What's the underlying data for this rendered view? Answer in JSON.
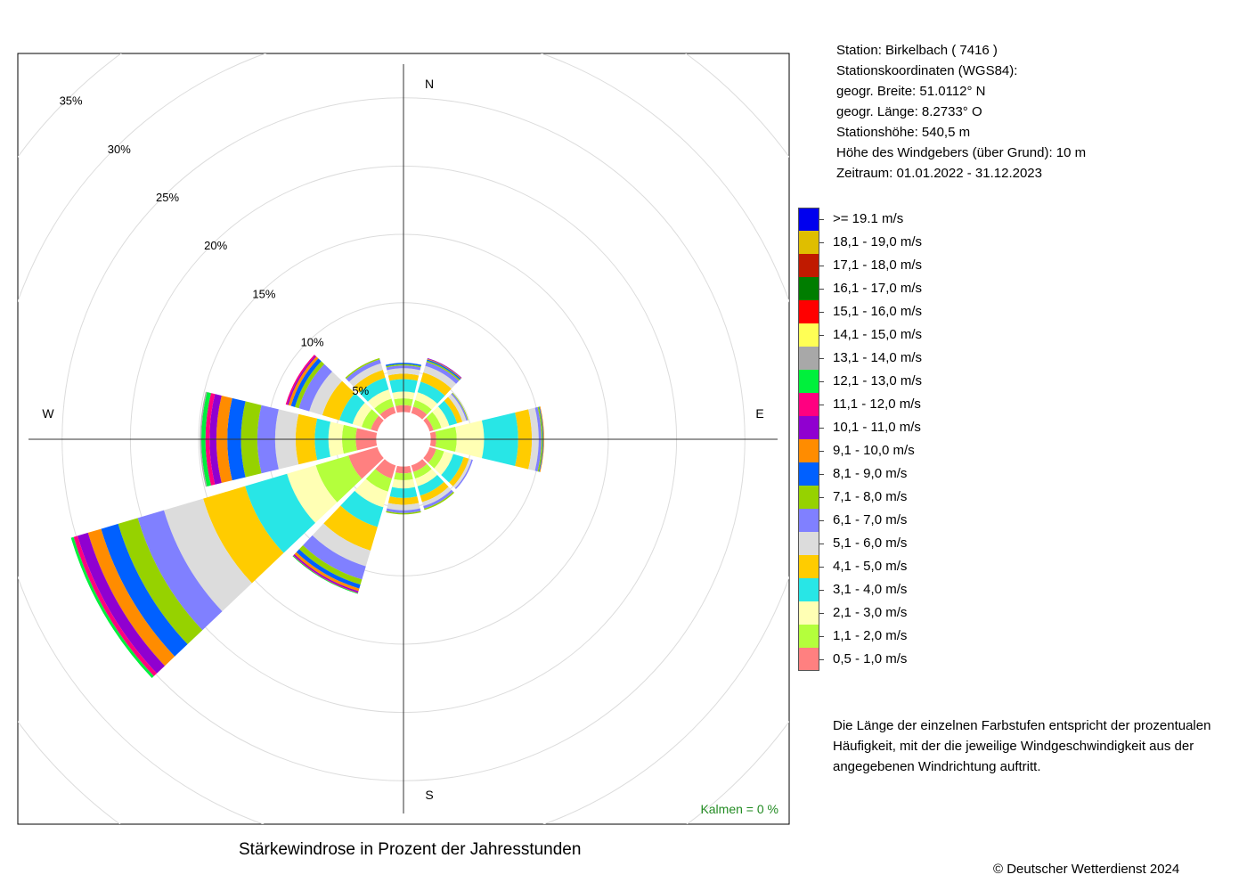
{
  "station": {
    "line_station": "Station:  Birkelbach  ( 7416 )",
    "line_coords": "Stationskoordinaten (WGS84):",
    "line_lat": "geogr. Breite: 51.0112° N",
    "line_lon": "geogr. Länge:   8.2733° O",
    "line_height": "Stationshöhe: 540,5 m",
    "line_sensor": "Höhe des Windgebers (über Grund): 10 m",
    "line_period": "Zeitraum: 01.01.2022 - 31.12.2023"
  },
  "legend": [
    {
      "label": ">= 19.1 m/s",
      "color": "#0000ee"
    },
    {
      "label": "18,1 - 19,0 m/s",
      "color": "#dfbe00"
    },
    {
      "label": "17,1 - 18,0 m/s",
      "color": "#c01a00"
    },
    {
      "label": "16,1 - 17,0 m/s",
      "color": "#007d00"
    },
    {
      "label": "15,1 - 16,0 m/s",
      "color": "#ff0000"
    },
    {
      "label": "14,1 - 15,0 m/s",
      "color": "#ffff55"
    },
    {
      "label": "13,1 - 14,0 m/s",
      "color": "#a8a8a8"
    },
    {
      "label": "12,1 - 13,0 m/s",
      "color": "#00f03c"
    },
    {
      "label": "11,1 - 12,0 m/s",
      "color": "#ff0080"
    },
    {
      "label": "10,1 - 11,0 m/s",
      "color": "#9000d0"
    },
    {
      "label": "9,1 - 10,0 m/s",
      "color": "#ff8c00"
    },
    {
      "label": "8,1 - 9,0 m/s",
      "color": "#0060ff"
    },
    {
      "label": "7,1 - 8,0 m/s",
      "color": "#96d200"
    },
    {
      "label": "6,1 - 7,0 m/s",
      "color": "#8080ff"
    },
    {
      "label": "5,1 - 6,0 m/s",
      "color": "#dcdcdc"
    },
    {
      "label": "4,1 - 5,0 m/s",
      "color": "#ffcc00"
    },
    {
      "label": "3,1 - 4,0 m/s",
      "color": "#28e6e6"
    },
    {
      "label": "2,1 - 3,0 m/s",
      "color": "#ffffb4"
    },
    {
      "label": "1,1 - 2,0 m/s",
      "color": "#b4ff3c"
    },
    {
      "label": "0,5 - 1,0 m/s",
      "color": "#ff8080"
    }
  ],
  "note": {
    "line1": "Die Länge der einzelnen Farbstufen entspricht der prozentualen",
    "line2": "Häufigkeit, mit der die jeweilige Windgeschwindigkeit aus der",
    "line3": "angegebenen Windrichtung auftritt."
  },
  "caption": "Stärkewindrose in Prozent der Jahresstunden",
  "copyright": "© Deutscher Wetterdienst  2024",
  "chart_data": {
    "type": "windrose",
    "unit": "%",
    "ring_values": [
      5,
      10,
      15,
      20,
      25,
      30,
      35
    ],
    "ring_labels": [
      "5%",
      "10%",
      "15%",
      "20%",
      "25%",
      "30%",
      "35%"
    ],
    "compass": {
      "north": "N",
      "east": "E",
      "south": "S",
      "west": "W"
    },
    "calm_label": "Kalmen  =  0 %",
    "colors": [
      "#ff8080",
      "#b4ff3c",
      "#ffffb4",
      "#28e6e6",
      "#ffcc00",
      "#dcdcdc",
      "#8080ff",
      "#96d200",
      "#0060ff",
      "#ff8c00",
      "#9000d0",
      "#ff0080",
      "#00f03c",
      "#a8a8a8",
      "#ffff55",
      "#ff0000",
      "#007d00",
      "#c01a00",
      "#dfbe00",
      "#0000ee"
    ],
    "inner_offset": 2.0,
    "sector_width_deg": 27,
    "directions": [
      {
        "dir_deg": 0,
        "values": [
          0.5,
          0.5,
          0.5,
          0.9,
          0.4,
          0.4,
          0.2,
          0.1,
          0.1
        ]
      },
      {
        "dir_deg": 30,
        "values": [
          0.5,
          0.5,
          0.6,
          0.8,
          0.7,
          0.5,
          0.3,
          0.1,
          0.1,
          0.05,
          0.05
        ]
      },
      {
        "dir_deg": 60,
        "values": [
          0.3,
          0.6,
          0.6,
          0.6,
          0.4,
          0.3,
          0.1,
          0.05
        ]
      },
      {
        "dir_deg": 90,
        "values": [
          0.4,
          1.5,
          2.0,
          2.5,
          1.0,
          0.5,
          0.2,
          0.1,
          0.05,
          0.05
        ]
      },
      {
        "dir_deg": 120,
        "values": [
          0.5,
          0.6,
          0.7,
          0.8,
          0.4,
          0.2,
          0.1
        ]
      },
      {
        "dir_deg": 150,
        "values": [
          0.5,
          0.5,
          0.6,
          0.7,
          0.5,
          0.3,
          0.2,
          0.1
        ]
      },
      {
        "dir_deg": 180,
        "values": [
          0.5,
          0.5,
          0.6,
          0.7,
          0.5,
          0.4,
          0.2,
          0.1
        ]
      },
      {
        "dir_deg": 210,
        "values": [
          1.0,
          1.0,
          1.2,
          1.5,
          1.8,
          1.2,
          1.0,
          0.4,
          0.3,
          0.2,
          0.1,
          0.05,
          0.05
        ]
      },
      {
        "dir_deg": 240,
        "values": [
          2.2,
          2.5,
          2.2,
          3.2,
          3.2,
          3.0,
          2.0,
          1.5,
          1.3,
          1.0,
          0.8,
          0.3,
          0.2
        ]
      },
      {
        "dir_deg": 270,
        "values": [
          1.5,
          1.0,
          1.0,
          1.0,
          1.4,
          1.5,
          1.3,
          1.2,
          1.0,
          0.8,
          0.5,
          0.3,
          0.3,
          0.1
        ]
      },
      {
        "dir_deg": 300,
        "values": [
          0.5,
          0.7,
          0.7,
          1.0,
          1.3,
          1.0,
          0.8,
          0.3,
          0.3,
          0.2,
          0.1,
          0.1
        ]
      },
      {
        "dir_deg": 330,
        "values": [
          0.5,
          0.6,
          0.7,
          0.9,
          0.6,
          0.5,
          0.3,
          0.1
        ]
      }
    ]
  }
}
